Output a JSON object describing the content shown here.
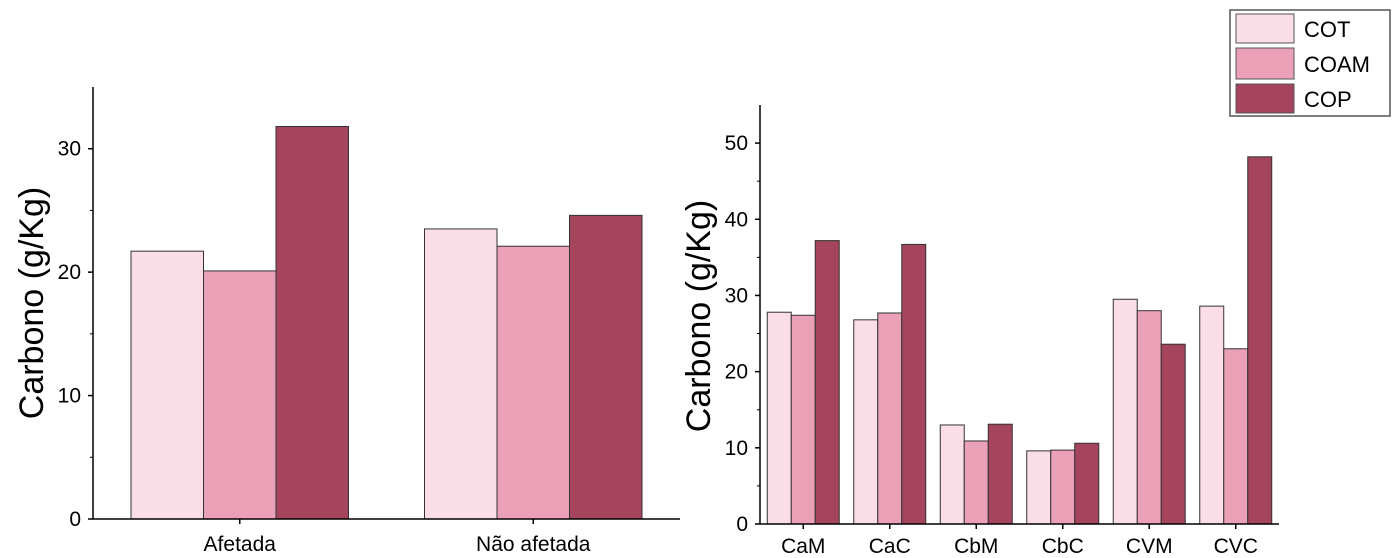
{
  "colors": {
    "COT": "#fadde6",
    "COAM": "#eaa0b6",
    "COP": "#a5445d",
    "axis": "#000000"
  },
  "legend": {
    "placement": "top-right",
    "entries": [
      "COT",
      "COAM",
      "COP"
    ]
  },
  "chart_data": [
    {
      "type": "bar",
      "categories": [
        "Afetada",
        "Não afetada"
      ],
      "series": [
        {
          "name": "COT",
          "values": [
            21.7,
            23.5
          ]
        },
        {
          "name": "COAM",
          "values": [
            20.1,
            22.1
          ]
        },
        {
          "name": "COP",
          "values": [
            31.8,
            24.6
          ]
        }
      ],
      "ylabel": "Carbono (g/Kg)",
      "xlabel": "",
      "ylim": [
        0,
        35
      ],
      "yticks": [
        0,
        10,
        20,
        30
      ],
      "grid": false
    },
    {
      "type": "bar",
      "categories": [
        "CaM",
        "CaC",
        "CbM",
        "CbC",
        "CVM",
        "CVC"
      ],
      "series": [
        {
          "name": "COT",
          "values": [
            27.8,
            26.8,
            13.0,
            9.6,
            29.5,
            28.6
          ]
        },
        {
          "name": "COAM",
          "values": [
            27.4,
            27.7,
            10.9,
            9.7,
            28.0,
            23.0
          ]
        },
        {
          "name": "COP",
          "values": [
            37.2,
            36.7,
            13.1,
            10.6,
            23.6,
            48.2
          ]
        }
      ],
      "ylabel": "Carbono (g/Kg)",
      "xlabel": "",
      "ylim": [
        0,
        55
      ],
      "yticks": [
        0,
        10,
        20,
        30,
        40,
        50
      ],
      "grid": false
    }
  ]
}
